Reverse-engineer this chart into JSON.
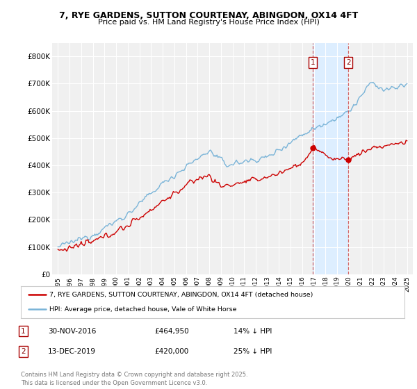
{
  "title_line1": "7, RYE GARDENS, SUTTON COURTENAY, ABINGDON, OX14 4FT",
  "title_line2": "Price paid vs. HM Land Registry's House Price Index (HPI)",
  "ylabel_ticks": [
    "£0",
    "£100K",
    "£200K",
    "£300K",
    "£400K",
    "£500K",
    "£600K",
    "£700K",
    "£800K"
  ],
  "ytick_values": [
    0,
    100000,
    200000,
    300000,
    400000,
    500000,
    600000,
    700000,
    800000
  ],
  "ylim": [
    0,
    850000
  ],
  "xlim_start": 1994.5,
  "xlim_end": 2025.5,
  "hpi_color": "#7ab4d8",
  "hpi_shade_color": "#ddeeff",
  "price_color": "#cc0000",
  "marker1_date": 2016.92,
  "marker1_price": 464950,
  "marker2_date": 2019.95,
  "marker2_price": 420000,
  "legend_line1": "7, RYE GARDENS, SUTTON COURTENAY, ABINGDON, OX14 4FT (detached house)",
  "legend_line2": "HPI: Average price, detached house, Vale of White Horse",
  "note1_date": "30-NOV-2016",
  "note1_price": "£464,950",
  "note1_pct": "14% ↓ HPI",
  "note2_date": "13-DEC-2019",
  "note2_price": "£420,000",
  "note2_pct": "25% ↓ HPI",
  "footer": "Contains HM Land Registry data © Crown copyright and database right 2025.\nThis data is licensed under the Open Government Licence v3.0.",
  "bg_color": "#ffffff",
  "plot_bg_color": "#f0f0f0",
  "x_ticks": [
    1995,
    1996,
    1997,
    1998,
    1999,
    2000,
    2001,
    2002,
    2003,
    2004,
    2005,
    2006,
    2007,
    2008,
    2009,
    2010,
    2011,
    2012,
    2013,
    2014,
    2015,
    2016,
    2017,
    2018,
    2019,
    2020,
    2021,
    2022,
    2023,
    2024,
    2025
  ]
}
